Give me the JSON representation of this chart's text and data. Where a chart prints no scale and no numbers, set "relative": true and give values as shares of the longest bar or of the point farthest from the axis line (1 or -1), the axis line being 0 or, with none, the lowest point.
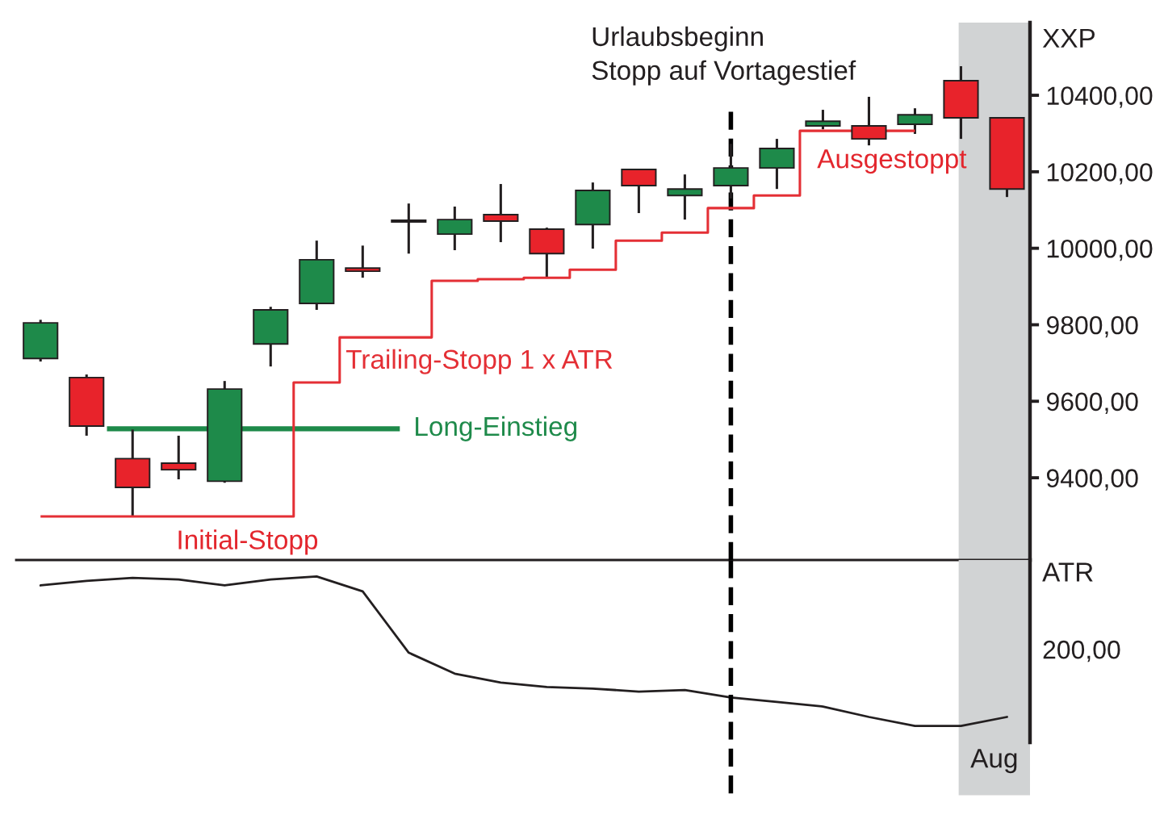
{
  "chart_data": [
    {
      "type": "candlestick",
      "ylabel": "XXP",
      "categories": [
        null,
        null,
        null,
        null,
        null,
        null,
        null,
        null,
        null,
        null,
        null,
        null,
        null,
        null,
        null,
        null,
        null,
        null,
        null,
        null,
        null,
        null
      ],
      "ohlc": [
        [
          9712,
          9813,
          9704,
          9805
        ],
        [
          9662,
          9670,
          9510,
          9535
        ],
        [
          9450,
          9526,
          9299,
          9375
        ],
        [
          9438,
          9510,
          9396,
          9421
        ],
        [
          9391,
          9653,
          9387,
          9632
        ],
        [
          9750,
          9847,
          9691,
          9839
        ],
        [
          9856,
          10020,
          9839,
          9970
        ],
        [
          9948,
          10007,
          9923,
          9940
        ],
        [
          10069,
          10117,
          9986,
          10073
        ],
        [
          10037,
          10109,
          9995,
          10075
        ],
        [
          10088,
          10168,
          10016,
          10071
        ],
        [
          10050,
          10054,
          9923,
          9986
        ],
        [
          10062,
          10172,
          9999,
          10151
        ],
        [
          10206,
          10208,
          10092,
          10164
        ],
        [
          10138,
          10193,
          10075,
          10155
        ],
        [
          10164,
          10273,
          10130,
          10210
        ],
        [
          10210,
          10286,
          10155,
          10261
        ],
        [
          10320,
          10362,
          10311,
          10332
        ],
        [
          10320,
          10396,
          10269,
          10286
        ],
        [
          10324,
          10366,
          10299,
          10349
        ],
        [
          10438,
          10476,
          10286,
          10341
        ],
        [
          10341,
          10341,
          10134,
          10155
        ]
      ],
      "colors": [
        "#1e8a4a",
        "#e8232b",
        "#e8232b",
        "#e8232b",
        "#1e8a4a",
        "#1e8a4a",
        "#1e8a4a",
        "#e8232b",
        "#1e8a4a",
        "#1e8a4a",
        "#e8232b",
        "#e8232b",
        "#1e8a4a",
        "#e8232b",
        "#1e8a4a",
        "#1e8a4a",
        "#1e8a4a",
        "#1e8a4a",
        "#e8232b",
        "#1e8a4a",
        "#e8232b",
        "#e8232b"
      ],
      "series": [
        {
          "name": "Trailing-Stopp 1 x ATR",
          "type": "step",
          "color": "#e42f35",
          "values": [
            9299,
            9299,
            9299,
            9299,
            9299,
            9299,
            9649,
            9767,
            9767,
            9915,
            9919,
            9923,
            9944,
            10020,
            10041,
            10105,
            10138,
            10307,
            10307,
            10307,
            null,
            null
          ]
        }
      ],
      "ylim": [
        9185,
        10590
      ],
      "yticks": [
        {
          "value": 9400,
          "label": "9400,00"
        },
        {
          "value": 9600,
          "label": "9600,00"
        },
        {
          "value": 9800,
          "label": "9800,00"
        },
        {
          "value": 10000,
          "label": "10000,00"
        },
        {
          "value": 10200,
          "label": "10200,00"
        },
        {
          "value": 10400,
          "label": "10400,00"
        }
      ],
      "ref_lines": [
        {
          "axis": "y",
          "value": 9528,
          "label": "Long-Einstieg",
          "color": "#1e8a4a"
        }
      ],
      "annotations": [
        "Urlaubsbeginn\nStopp auf Vortagestief",
        {
          "text": "Initial-Stopp",
          "y": 9299
        },
        {
          "text": "Ausgestoppt",
          "y": 10307
        }
      ],
      "tick_labels": "y"
    },
    {
      "type": "line",
      "ylabel": "ATR",
      "categories": [
        null,
        null,
        null,
        null,
        null,
        null,
        null,
        null,
        null,
        null,
        null,
        null,
        null,
        null,
        null,
        null,
        null,
        null,
        null,
        null,
        null,
        null
      ],
      "relative": true,
      "series": [
        {
          "color": "#231f20",
          "values": [
            0.94,
            0.97,
            0.99,
            0.98,
            0.94,
            0.98,
            1,
            0.9,
            0.49,
            0.35,
            0.29,
            0.26,
            0.25,
            0.23,
            0.24,
            0.19,
            0.16,
            0.13,
            0.06,
            0,
            0,
            0.06
          ]
        }
      ],
      "annotations": [
        "200,00",
        "Aug"
      ],
      "tick_labels": false
    }
  ]
}
